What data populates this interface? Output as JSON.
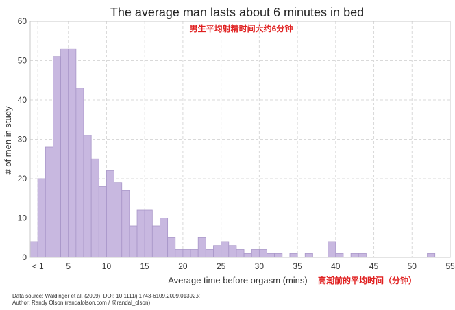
{
  "chart_data": {
    "type": "bar",
    "title": "The average man lasts about 6 minutes in bed",
    "subtitle_cn": "男生平均射精时间大约6分钟",
    "xlabel": "Average time before orgasm (mins)",
    "xlabel_cn": "高潮前的平均时间（分钟）",
    "ylabel": "# of men in study",
    "xlim": [
      0,
      55
    ],
    "ylim": [
      0,
      60
    ],
    "bin_width": 1,
    "x_tick_labels": [
      "< 1",
      "5",
      "10",
      "15",
      "20",
      "25",
      "30",
      "35",
      "40",
      "45",
      "50",
      "55"
    ],
    "x_tick_values": [
      1,
      5,
      10,
      15,
      20,
      25,
      30,
      35,
      40,
      45,
      50,
      55
    ],
    "y_tick_values": [
      0,
      10,
      20,
      30,
      40,
      50,
      60
    ],
    "grid": true,
    "bar_color": "#c8b8e0",
    "bar_edge_color": "#a896c8",
    "bins": [
      {
        "x": 0,
        "value": 4
      },
      {
        "x": 1,
        "value": 20
      },
      {
        "x": 2,
        "value": 28
      },
      {
        "x": 3,
        "value": 51
      },
      {
        "x": 4,
        "value": 53
      },
      {
        "x": 5,
        "value": 53
      },
      {
        "x": 6,
        "value": 43
      },
      {
        "x": 7,
        "value": 31
      },
      {
        "x": 8,
        "value": 25
      },
      {
        "x": 9,
        "value": 18
      },
      {
        "x": 10,
        "value": 22
      },
      {
        "x": 11,
        "value": 19
      },
      {
        "x": 12,
        "value": 17
      },
      {
        "x": 13,
        "value": 8
      },
      {
        "x": 14,
        "value": 12
      },
      {
        "x": 15,
        "value": 12
      },
      {
        "x": 16,
        "value": 8
      },
      {
        "x": 17,
        "value": 10
      },
      {
        "x": 18,
        "value": 5
      },
      {
        "x": 19,
        "value": 2
      },
      {
        "x": 20,
        "value": 2
      },
      {
        "x": 21,
        "value": 2
      },
      {
        "x": 22,
        "value": 5
      },
      {
        "x": 23,
        "value": 2
      },
      {
        "x": 24,
        "value": 3
      },
      {
        "x": 25,
        "value": 4
      },
      {
        "x": 26,
        "value": 3
      },
      {
        "x": 27,
        "value": 2
      },
      {
        "x": 28,
        "value": 1
      },
      {
        "x": 29,
        "value": 2
      },
      {
        "x": 30,
        "value": 2
      },
      {
        "x": 31,
        "value": 1
      },
      {
        "x": 32,
        "value": 1
      },
      {
        "x": 34,
        "value": 1
      },
      {
        "x": 36,
        "value": 1
      },
      {
        "x": 39,
        "value": 4
      },
      {
        "x": 40,
        "value": 1
      },
      {
        "x": 42,
        "value": 1
      },
      {
        "x": 43,
        "value": 1
      },
      {
        "x": 52,
        "value": 1
      }
    ]
  },
  "footer": {
    "source": "Data source: Waldinger et al. (2009), DOI: 10.1111/j.1743-6109.2009.01392.x",
    "author": "Author: Randy Olson (randalolson.com / @randal_olson)"
  }
}
